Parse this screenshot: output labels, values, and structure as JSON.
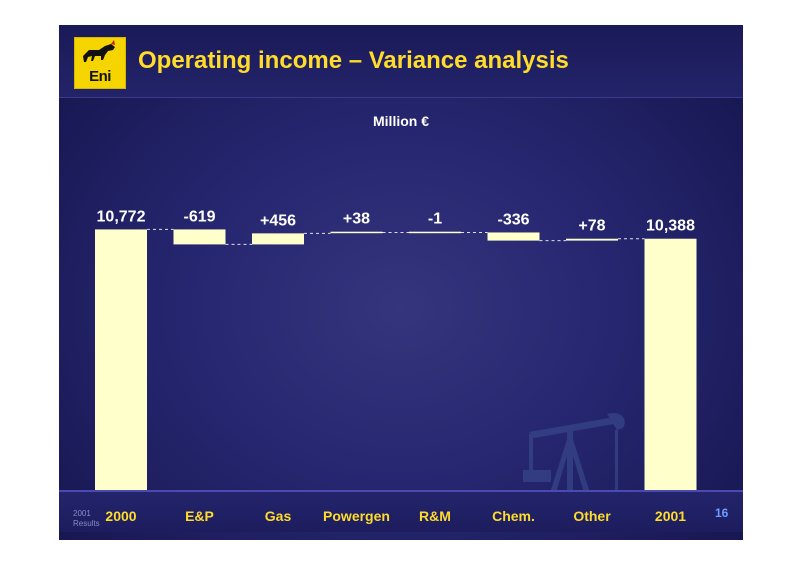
{
  "header": {
    "title": "Operating income – Variance analysis",
    "logo_text": "Eni"
  },
  "colors": {
    "bar_fill": "#ffffcc",
    "title_color": "#ffdc2a",
    "category_label_color": "#ffdc2a",
    "value_label_color": "#ffffff",
    "connector_color": "#ffffff",
    "background": "#262670"
  },
  "chart_data": {
    "type": "bar",
    "variant": "waterfall",
    "subtitle": "Million €",
    "unit": "Million €",
    "categories": [
      "2000",
      "E&P",
      "Gas",
      "Powergen",
      "R&M",
      "Chem.",
      "Other",
      "2001"
    ],
    "value_labels": [
      "10,772",
      "-619",
      "+456",
      "+38",
      "-1",
      "-336",
      "+78",
      "10,388"
    ],
    "values": [
      10772,
      -619,
      456,
      38,
      -1,
      -336,
      78,
      10388
    ],
    "bar_kinds": [
      "total",
      "delta",
      "delta",
      "delta",
      "delta",
      "delta",
      "delta",
      "total"
    ],
    "connectors": "dashed",
    "grid": false,
    "legend": "none"
  },
  "footer": {
    "note": "2001 Results",
    "page_number": "16"
  }
}
